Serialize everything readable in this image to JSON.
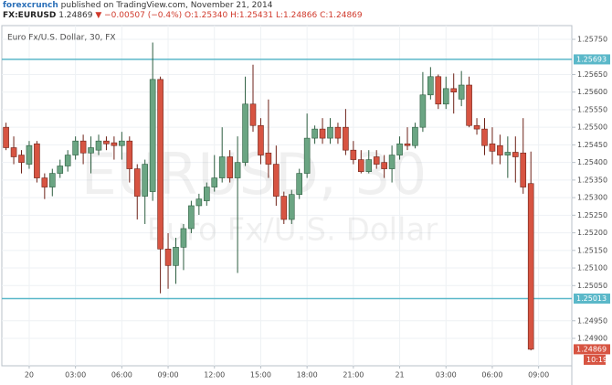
{
  "header": {
    "author": "forexcrunch",
    "published": "published on TradingView.com, November 21, 2014",
    "symbol": "FX:EURUSD",
    "price": "1.24869",
    "change": "−0.00507 (−0.4%)",
    "ohlc": "O:1.25340 H:1.25431 L:1.24866 C:1.24869"
  },
  "chart_data": {
    "type": "candlestick",
    "title": "Euro Fx/U.S. Dollar, 30, FX",
    "watermark": [
      "EURUSD, 30",
      "Euro Fx/U.S. Dollar"
    ],
    "categories": [
      null,
      null,
      null,
      "20",
      null,
      null,
      null,
      null,
      null,
      "03:00",
      null,
      null,
      null,
      null,
      null,
      "06:00",
      null,
      null,
      null,
      null,
      null,
      "09:00",
      null,
      null,
      null,
      null,
      null,
      "12:00",
      null,
      null,
      null,
      null,
      null,
      "15:00",
      null,
      null,
      null,
      null,
      null,
      "18:00",
      null,
      null,
      null,
      null,
      null,
      "21:00",
      null,
      null,
      null,
      null,
      null,
      "21",
      null,
      null,
      null,
      null,
      null,
      "03:00",
      null,
      null,
      null,
      null,
      null,
      "06:00",
      null,
      null,
      null,
      null,
      null,
      "09:00"
    ],
    "open": [
      1.255,
      1.25442,
      1.25421,
      1.25395,
      1.25453,
      1.25356,
      1.2533,
      1.25369,
      1.2539,
      1.25421,
      1.25461,
      1.25427,
      1.25435,
      1.25461,
      1.25456,
      1.25448,
      1.25461,
      1.25382,
      1.25304,
      1.25317,
      1.25636,
      1.25154,
      1.25107,
      1.25159,
      1.25212,
      1.25277,
      1.25291,
      1.2533,
      1.25356,
      1.25416,
      1.25356,
      1.254,
      1.25566,
      1.25505,
      1.25427,
      1.25395,
      1.25304,
      1.25238,
      1.25309,
      1.25369,
      1.25469,
      1.25495,
      1.25469,
      1.255,
      1.255,
      1.25435,
      1.25408,
      1.25374,
      1.25416,
      1.254,
      1.25382,
      1.25421,
      1.25453,
      1.25448,
      1.255,
      1.25592,
      1.25644,
      1.25566,
      1.2561,
      1.2558,
      1.2562,
      1.25505,
      1.25495,
      1.25453,
      1.25448,
      1.25421,
      1.25429,
      1.25427,
      1.2534,
      null
    ],
    "high": [
      1.25513,
      1.25474,
      1.25435,
      1.25461,
      1.25461,
      1.25369,
      1.25382,
      1.25408,
      1.25435,
      1.25474,
      1.25479,
      1.25474,
      1.25479,
      1.25474,
      1.25474,
      1.25487,
      1.25474,
      1.25395,
      1.25408,
      1.25741,
      1.25644,
      1.25199,
      1.25186,
      1.25225,
      1.25291,
      1.25311,
      1.25343,
      1.25421,
      1.255,
      1.25435,
      1.25474,
      1.25644,
      1.25678,
      1.25526,
      1.25579,
      1.25448,
      1.25317,
      1.25322,
      1.25382,
      1.25539,
      1.25505,
      1.25526,
      1.25526,
      1.25513,
      1.25552,
      1.25461,
      1.25435,
      1.25435,
      1.25435,
      1.25421,
      1.25448,
      1.25474,
      1.255,
      1.25513,
      1.25657,
      1.25671,
      1.2565,
      1.25644,
      1.25653,
      1.2566,
      1.25644,
      1.25526,
      1.25526,
      1.255,
      1.25479,
      1.25474,
      1.25474,
      1.25526,
      1.25431,
      null
    ],
    "low": [
      1.25435,
      1.25395,
      1.25369,
      1.25382,
      1.25343,
      1.25296,
      1.25304,
      1.25356,
      1.25374,
      1.25408,
      1.25395,
      1.25369,
      1.25421,
      1.25435,
      1.25408,
      1.25408,
      1.25343,
      1.25238,
      1.25225,
      1.25291,
      1.25028,
      1.25041,
      1.25055,
      1.25094,
      1.25199,
      1.25251,
      1.25277,
      1.25317,
      1.25343,
      1.25343,
      1.25086,
      1.2539,
      1.25487,
      1.25395,
      1.25356,
      1.25277,
      1.25225,
      1.25225,
      1.25296,
      1.25356,
      1.25453,
      1.25453,
      1.25453,
      1.25453,
      1.25421,
      1.25395,
      1.25369,
      1.25369,
      1.25382,
      1.25356,
      1.25343,
      1.25408,
      1.25435,
      1.2544,
      1.25487,
      1.25579,
      1.25552,
      1.25552,
      1.25539,
      1.2556,
      1.255,
      1.25479,
      1.25421,
      1.25395,
      1.25395,
      1.25356,
      1.25343,
      1.25311,
      1.24866,
      null
    ],
    "close": [
      1.25442,
      1.25416,
      1.254,
      1.25448,
      1.25356,
      1.2533,
      1.25369,
      1.2539,
      1.25421,
      1.25461,
      1.25427,
      1.25442,
      1.25461,
      1.25453,
      1.25448,
      1.25461,
      1.25382,
      1.25304,
      1.25395,
      1.25636,
      1.25154,
      1.25107,
      1.25159,
      1.25212,
      1.25277,
      1.25296,
      1.2533,
      1.25356,
      1.25416,
      1.25356,
      1.254,
      1.25566,
      1.25505,
      1.25421,
      1.25395,
      1.25304,
      1.25238,
      1.25309,
      1.25369,
      1.25469,
      1.25495,
      1.25469,
      1.255,
      1.25469,
      1.25435,
      1.25408,
      1.25374,
      1.25408,
      1.25395,
      1.25382,
      1.25421,
      1.25453,
      1.25448,
      1.255,
      1.25592,
      1.25644,
      1.25566,
      1.2561,
      1.256,
      1.2562,
      1.25505,
      1.25495,
      1.25448,
      1.25432,
      1.25421,
      1.25429,
      1.25416,
      1.2533,
      1.24869,
      null
    ],
    "up_color": "#6ba583",
    "down_color": "#d75442",
    "ylim": [
      1.24822,
      1.25789
    ],
    "yticks": [
      {
        "value": 1.2575,
        "label": "1.25750"
      },
      {
        "value": 1.2565,
        "label": "1.25650"
      },
      {
        "value": 1.256,
        "label": "1.25600"
      },
      {
        "value": 1.2555,
        "label": "1.25550"
      },
      {
        "value": 1.255,
        "label": "1.25500"
      },
      {
        "value": 1.2545,
        "label": "1.25450"
      },
      {
        "value": 1.254,
        "label": "1.25400"
      },
      {
        "value": 1.2535,
        "label": "1.25350"
      },
      {
        "value": 1.253,
        "label": "1.25300"
      },
      {
        "value": 1.2525,
        "label": "1.25250"
      },
      {
        "value": 1.252,
        "label": "1.25200"
      },
      {
        "value": 1.2515,
        "label": "1.25150"
      },
      {
        "value": 1.251,
        "label": "1.25100"
      },
      {
        "value": 1.2505,
        "label": "1.25050"
      },
      {
        "value": 1.2495,
        "label": "1.24950"
      },
      {
        "value": 1.249,
        "label": "1.24900"
      }
    ],
    "hlines": [
      1.25693,
      1.25013
    ],
    "hline_color": "#5bb8c9",
    "countdown": "10:19",
    "grid": true
  }
}
